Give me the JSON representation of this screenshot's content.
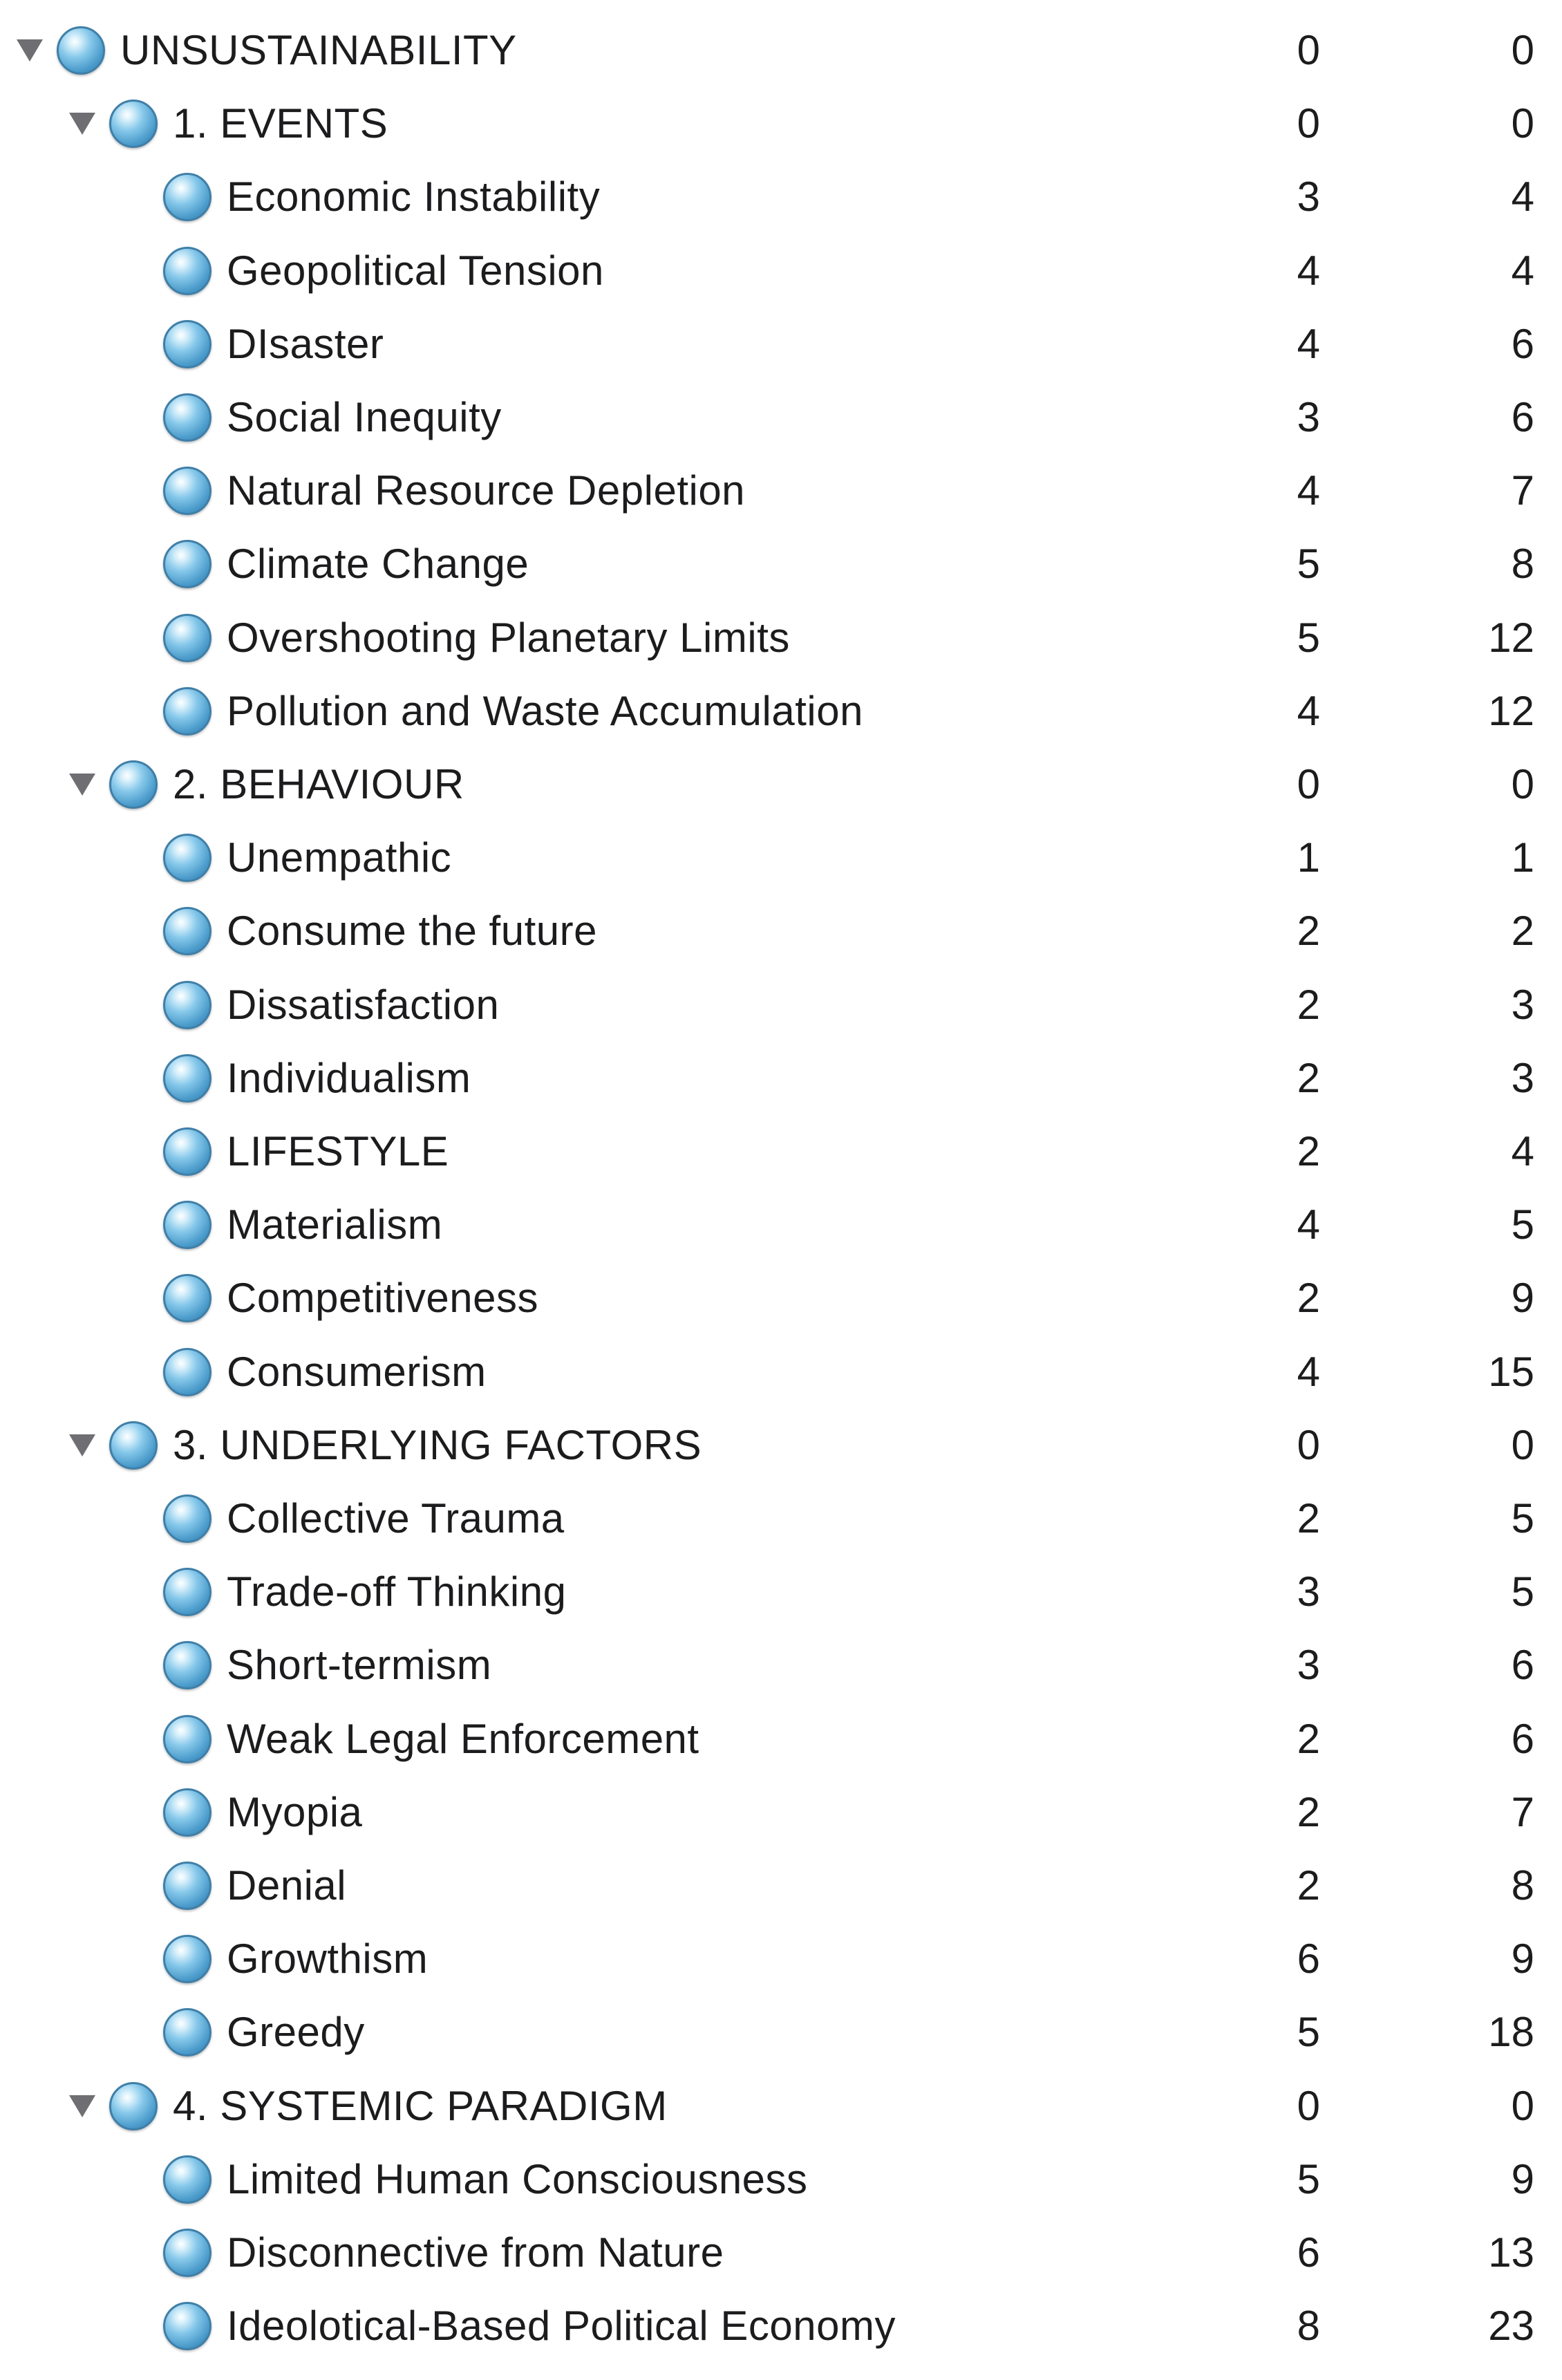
{
  "outline": {
    "rows": [
      {
        "level": 0,
        "expanded": true,
        "label": "UNSUSTAINABILITY",
        "c1": "0",
        "c2": "0"
      },
      {
        "level": 1,
        "expanded": true,
        "label": "1. EVENTS",
        "c1": "0",
        "c2": "0"
      },
      {
        "level": 2,
        "expanded": false,
        "label": "Economic Instability",
        "c1": "3",
        "c2": "4"
      },
      {
        "level": 2,
        "expanded": false,
        "label": "Geopolitical Tension",
        "c1": "4",
        "c2": "4"
      },
      {
        "level": 2,
        "expanded": false,
        "label": "DIsaster",
        "c1": "4",
        "c2": "6"
      },
      {
        "level": 2,
        "expanded": false,
        "label": "Social Inequity",
        "c1": "3",
        "c2": "6"
      },
      {
        "level": 2,
        "expanded": false,
        "label": "Natural Resource Depletion",
        "c1": "4",
        "c2": "7"
      },
      {
        "level": 2,
        "expanded": false,
        "label": "Climate Change",
        "c1": "5",
        "c2": "8"
      },
      {
        "level": 2,
        "expanded": false,
        "label": "Overshooting Planetary Limits",
        "c1": "5",
        "c2": "12"
      },
      {
        "level": 2,
        "expanded": false,
        "label": "Pollution and Waste Accumulation",
        "c1": "4",
        "c2": "12"
      },
      {
        "level": 1,
        "expanded": true,
        "label": "2. BEHAVIOUR",
        "c1": "0",
        "c2": "0"
      },
      {
        "level": 2,
        "expanded": false,
        "label": "Unempathic",
        "c1": "1",
        "c2": "1"
      },
      {
        "level": 2,
        "expanded": false,
        "label": "Consume the future",
        "c1": "2",
        "c2": "2"
      },
      {
        "level": 2,
        "expanded": false,
        "label": "Dissatisfaction",
        "c1": "2",
        "c2": "3"
      },
      {
        "level": 2,
        "expanded": false,
        "label": "Individualism",
        "c1": "2",
        "c2": "3"
      },
      {
        "level": 2,
        "expanded": false,
        "label": "LIFESTYLE",
        "c1": "2",
        "c2": "4"
      },
      {
        "level": 2,
        "expanded": false,
        "label": "Materialism",
        "c1": "4",
        "c2": "5"
      },
      {
        "level": 2,
        "expanded": false,
        "label": "Competitiveness",
        "c1": "2",
        "c2": "9"
      },
      {
        "level": 2,
        "expanded": false,
        "label": "Consumerism",
        "c1": "4",
        "c2": "15"
      },
      {
        "level": 1,
        "expanded": true,
        "label": "3. UNDERLYING FACTORS",
        "c1": "0",
        "c2": "0"
      },
      {
        "level": 2,
        "expanded": false,
        "label": "Collective Trauma",
        "c1": "2",
        "c2": "5"
      },
      {
        "level": 2,
        "expanded": false,
        "label": "Trade-off Thinking",
        "c1": "3",
        "c2": "5"
      },
      {
        "level": 2,
        "expanded": false,
        "label": "Short-termism",
        "c1": "3",
        "c2": "6"
      },
      {
        "level": 2,
        "expanded": false,
        "label": "Weak Legal Enforcement",
        "c1": "2",
        "c2": "6"
      },
      {
        "level": 2,
        "expanded": false,
        "label": "Myopia",
        "c1": "2",
        "c2": "7"
      },
      {
        "level": 2,
        "expanded": false,
        "label": "Denial",
        "c1": "2",
        "c2": "8"
      },
      {
        "level": 2,
        "expanded": false,
        "label": "Growthism",
        "c1": "6",
        "c2": "9"
      },
      {
        "level": 2,
        "expanded": false,
        "label": "Greedy",
        "c1": "5",
        "c2": "18"
      },
      {
        "level": 1,
        "expanded": true,
        "label": "4. SYSTEMIC PARADIGM",
        "c1": "0",
        "c2": "0"
      },
      {
        "level": 2,
        "expanded": false,
        "label": "Limited Human Consciousness",
        "c1": "5",
        "c2": "9"
      },
      {
        "level": 2,
        "expanded": false,
        "label": "Disconnective from Nature",
        "c1": "6",
        "c2": "13"
      },
      {
        "level": 2,
        "expanded": false,
        "label": "Ideolotical-Based Political Economy",
        "c1": "8",
        "c2": "23"
      }
    ]
  },
  "icons": {
    "disclosure": "disclosure-triangle-down-icon",
    "bullet": "blue-sphere-bullet-icon"
  },
  "colors": {
    "bullet": "#4b9bcb",
    "disclosure": "#6e6e73",
    "text": "#1c1c1e",
    "background": "#ffffff"
  }
}
